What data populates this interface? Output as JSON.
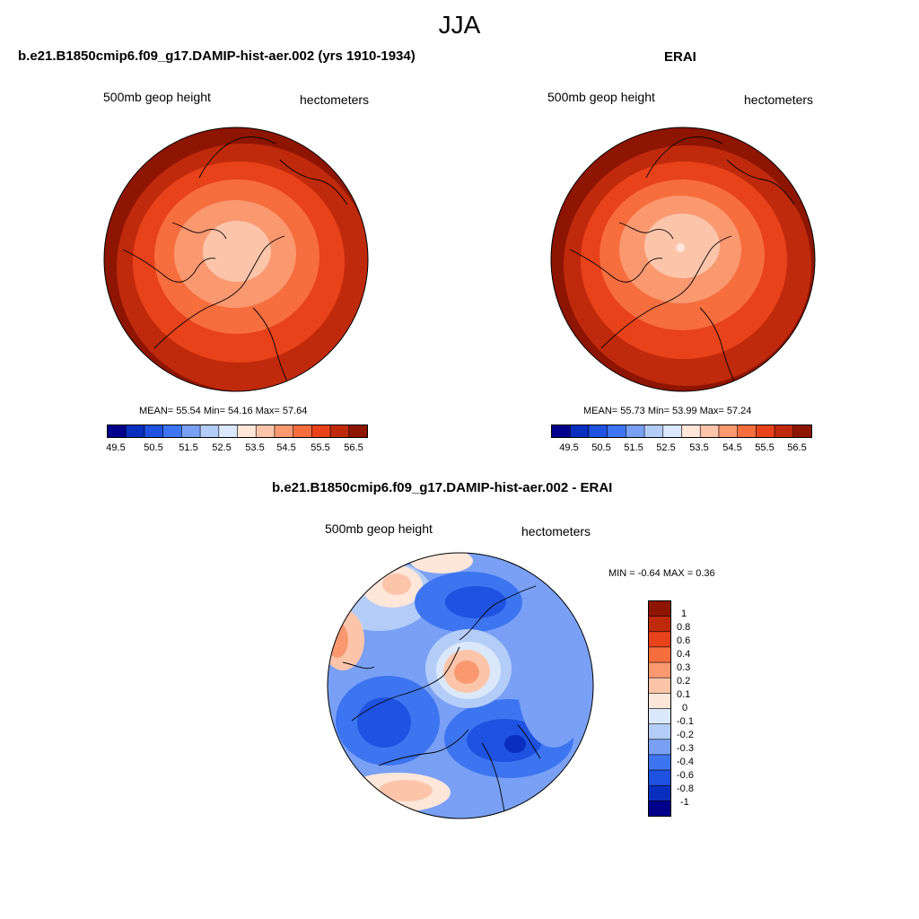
{
  "page": {
    "title": "JJA"
  },
  "panels": [
    {
      "title": "b.e21.B1850cmip6.f09_g17.DAMIP-hist-aer.002 (yrs 1910-1934)",
      "left_label": "500mb geop height",
      "right_label": "hectometers",
      "stats": "MEAN=  55.54  Min=  54.16  Max=  57.64",
      "colorbar_ticks": [
        "49.5",
        "50.5",
        "51.5",
        "52.5",
        "53.5",
        "54.5",
        "55.5",
        "56.5"
      ]
    },
    {
      "title": "ERAI",
      "left_label": "500mb geop height",
      "right_label": "hectometers",
      "stats": "MEAN=  55.73  Min=  53.99  Max=  57.24",
      "colorbar_ticks": [
        "49.5",
        "50.5",
        "51.5",
        "52.5",
        "53.5",
        "54.5",
        "55.5",
        "56.5"
      ]
    }
  ],
  "diff": {
    "title": "b.e21.B1850cmip6.f09_g17.DAMIP-hist-aer.002 - ERAI",
    "left_label": "500mb geop height",
    "right_label": "hectometers",
    "stats": "MIN =  -0.64 MAX =   0.36",
    "colorbar_labels": [
      "1",
      "0.8",
      "0.6",
      "0.4",
      "0.3",
      "0.2",
      "0.1",
      "0",
      "-0.1",
      "-0.2",
      "-0.3",
      "-0.4",
      "-0.6",
      "-0.8",
      "-1"
    ]
  },
  "colors": {
    "abs_scale": [
      "#00008b",
      "#0a2fbf",
      "#1f52e0",
      "#3d74f0",
      "#79a0f5",
      "#b4cdf8",
      "#dbe8fb",
      "#fee6d8",
      "#fcc5aa",
      "#fa9870",
      "#f66d3e",
      "#e8421a",
      "#c02a0c",
      "#8e1502"
    ],
    "diff_scale": [
      "#8e1502",
      "#c02a0c",
      "#e8421a",
      "#f66d3e",
      "#fa9870",
      "#fcc5aa",
      "#fee6d8",
      "#dbe8fb",
      "#b4cdf8",
      "#79a0f5",
      "#3d74f0",
      "#1f52e0",
      "#0a2fbf",
      "#00008b"
    ]
  }
}
